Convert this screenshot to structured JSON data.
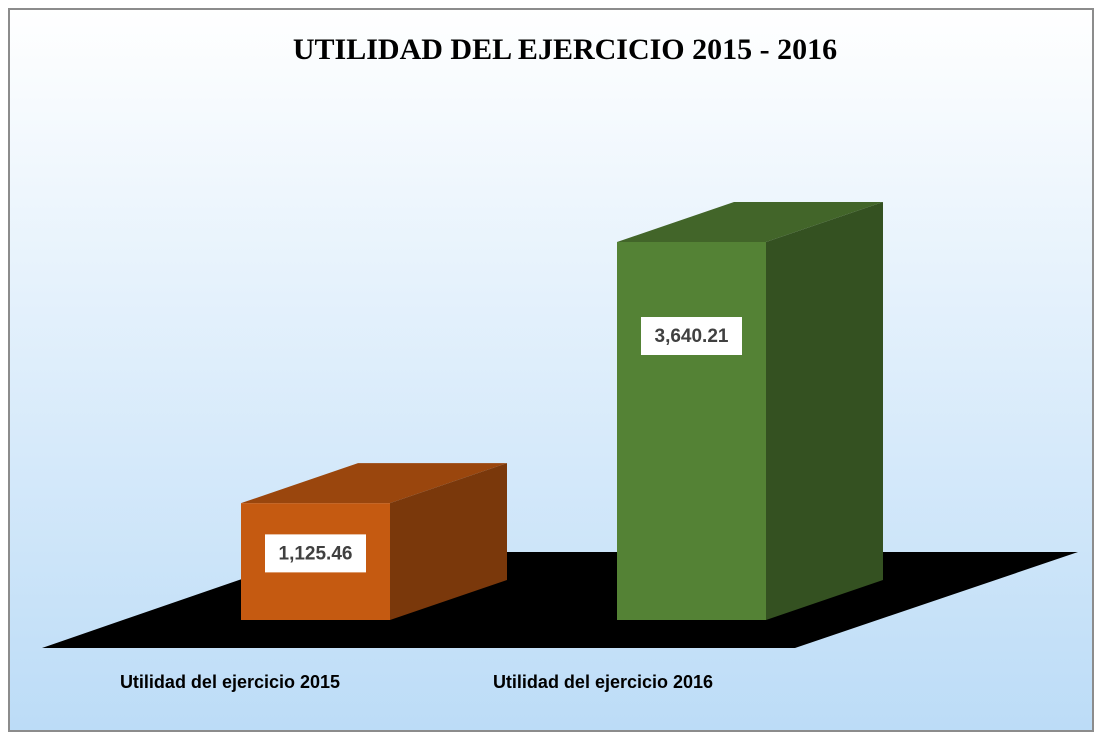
{
  "chart_data": {
    "type": "bar3d",
    "title": "UTILIDAD DEL EJERCICIO 2015 - 2016",
    "categories": [
      "Utilidad del ejercicio 2015",
      "Utilidad del ejercicio 2016"
    ],
    "values": [
      1125.46,
      3640.21
    ],
    "value_labels": [
      "1,125.46",
      "3,640.21"
    ],
    "colors": [
      "#c55a11",
      "#548235"
    ]
  }
}
